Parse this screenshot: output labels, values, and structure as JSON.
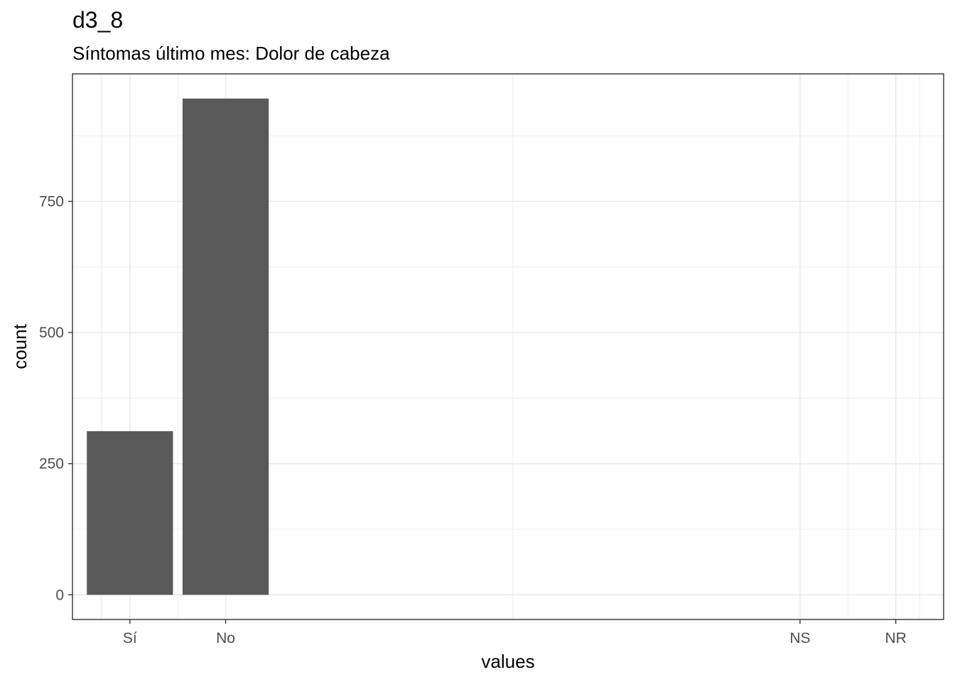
{
  "chart_data": {
    "type": "bar",
    "title": "d3_8",
    "subtitle": "Síntomas último mes: Dolor de cabeza",
    "xlabel": "values",
    "ylabel": "count",
    "categories": [
      "Sí",
      "No",
      "NS",
      "NR"
    ],
    "x": [
      1,
      2,
      8,
      9
    ],
    "values": [
      312,
      946,
      0,
      0
    ],
    "xlim": [
      0.4,
      9.5
    ],
    "ylim": [
      -47,
      993
    ],
    "yticks": [
      0,
      250,
      500,
      750
    ],
    "grid": true,
    "bar_color": "#595959",
    "grid_color": "#ebebeb",
    "panel_border_color": "#333333"
  }
}
